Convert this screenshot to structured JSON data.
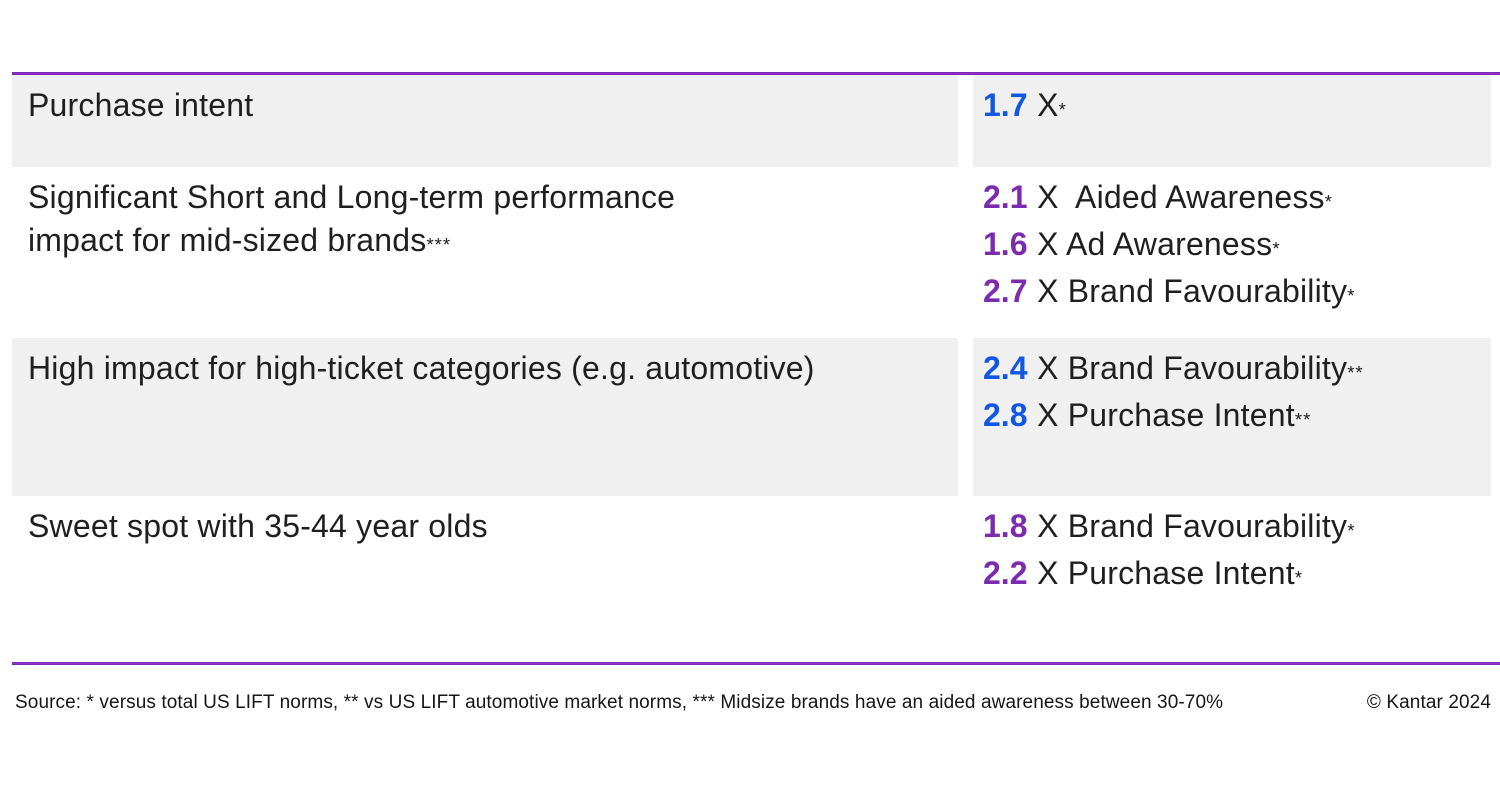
{
  "theme": {
    "line_purple": "#8129BE",
    "row_shade": "#F0F0F0",
    "metric_blue": "#1157E4",
    "metric_purple": "#7C2BAE"
  },
  "table": {
    "rows": [
      {
        "label": {
          "text": "Purchase intent",
          "note": ""
        },
        "metrics": [
          {
            "value": "1.7",
            "color": "blue",
            "label": "X",
            "note": "*"
          }
        ]
      },
      {
        "label": {
          "text": "Significant Short and Long-term performance\nimpact for mid-sized brands",
          "note": "***"
        },
        "metrics": [
          {
            "value": "2.1",
            "color": "purple",
            "label": "X  Aided Awareness",
            "note": "*"
          },
          {
            "value": "1.6",
            "color": "purple",
            "label": "X Ad Awareness",
            "note": "*"
          },
          {
            "value": "2.7",
            "color": "purple",
            "label": "X Brand Favourability",
            "note": "*"
          }
        ]
      },
      {
        "label": {
          "text": "High impact for high-ticket categories (e.g. automotive)",
          "note": ""
        },
        "metrics": [
          {
            "value": "2.4",
            "color": "blue",
            "label": "X Brand Favourability",
            "note": "**"
          },
          {
            "value": "2.8",
            "color": "blue",
            "label": "X Purchase Intent",
            "note": "**"
          }
        ]
      },
      {
        "label": {
          "text": "Sweet spot with 35-44 year olds",
          "note": ""
        },
        "metrics": [
          {
            "value": "1.8",
            "color": "purple",
            "label": "X Brand Favourability",
            "note": "*"
          },
          {
            "value": "2.2",
            "color": "purple",
            "label": "X Purchase Intent",
            "note": "*"
          }
        ]
      }
    ]
  },
  "footer": {
    "source": "Source: * versus total US LIFT norms, ** vs US LIFT automotive market norms, *** Midsize brands have an aided awareness between 30-70%",
    "copyright": "© Kantar 2024"
  }
}
